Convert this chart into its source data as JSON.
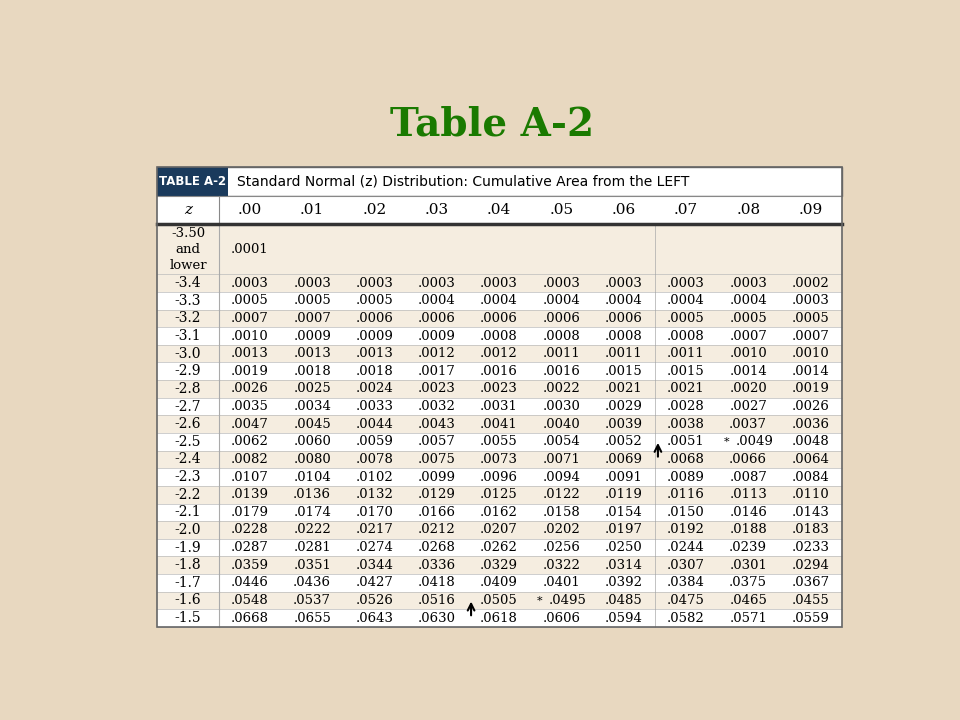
{
  "title": "Table A-2",
  "title_color": "#1a7a00",
  "bg_color": "#e8d8c0",
  "table_bg_light": "#f5ede0",
  "table_bg_dark": "#e8ddd0",
  "header_box_color": "#1a3a5c",
  "header_text": "Standard Normal (z) Distribution: Cumulative Area from the LEFT",
  "col_headers": [
    "z",
    ".00",
    ".01",
    ".02",
    ".03",
    ".04",
    ".05",
    ".06",
    ".07",
    ".08",
    ".09"
  ],
  "rows": [
    [
      "-3.50\nand\nlower",
      ".0001",
      "",
      "",
      "",
      "",
      "",
      "",
      "",
      "",
      ""
    ],
    [
      "-3.4",
      ".0003",
      ".0003",
      ".0003",
      ".0003",
      ".0003",
      ".0003",
      ".0003",
      ".0003",
      ".0003",
      ".0002"
    ],
    [
      "-3.3",
      ".0005",
      ".0005",
      ".0005",
      ".0004",
      ".0004",
      ".0004",
      ".0004",
      ".0004",
      ".0004",
      ".0003"
    ],
    [
      "-3.2",
      ".0007",
      ".0007",
      ".0006",
      ".0006",
      ".0006",
      ".0006",
      ".0006",
      ".0005",
      ".0005",
      ".0005"
    ],
    [
      "-3.1",
      ".0010",
      ".0009",
      ".0009",
      ".0009",
      ".0008",
      ".0008",
      ".0008",
      ".0008",
      ".0007",
      ".0007"
    ],
    [
      "-3.0",
      ".0013",
      ".0013",
      ".0013",
      ".0012",
      ".0012",
      ".0011",
      ".0011",
      ".0011",
      ".0010",
      ".0010"
    ],
    [
      "-2.9",
      ".0019",
      ".0018",
      ".0018",
      ".0017",
      ".0016",
      ".0016",
      ".0015",
      ".0015",
      ".0014",
      ".0014"
    ],
    [
      "-2.8",
      ".0026",
      ".0025",
      ".0024",
      ".0023",
      ".0023",
      ".0022",
      ".0021",
      ".0021",
      ".0020",
      ".0019"
    ],
    [
      "-2.7",
      ".0035",
      ".0034",
      ".0033",
      ".0032",
      ".0031",
      ".0030",
      ".0029",
      ".0028",
      ".0027",
      ".0026"
    ],
    [
      "-2.6",
      ".0047",
      ".0045",
      ".0044",
      ".0043",
      ".0041",
      ".0040",
      ".0039",
      ".0038",
      ".0037",
      ".0036"
    ],
    [
      "-2.5",
      ".0062",
      ".0060",
      ".0059",
      ".0057",
      ".0055",
      ".0054",
      ".0052",
      ".0051",
      "* .0049",
      ".0048"
    ],
    [
      "-2.4",
      ".0082",
      ".0080",
      ".0078",
      ".0075",
      ".0073",
      ".0071",
      ".0069",
      ".0068",
      ".0066",
      ".0064"
    ],
    [
      "-2.3",
      ".0107",
      ".0104",
      ".0102",
      ".0099",
      ".0096",
      ".0094",
      ".0091",
      ".0089",
      ".0087",
      ".0084"
    ],
    [
      "-2.2",
      ".0139",
      ".0136",
      ".0132",
      ".0129",
      ".0125",
      ".0122",
      ".0119",
      ".0116",
      ".0113",
      ".0110"
    ],
    [
      "-2.1",
      ".0179",
      ".0174",
      ".0170",
      ".0166",
      ".0162",
      ".0158",
      ".0154",
      ".0150",
      ".0146",
      ".0143"
    ],
    [
      "-2.0",
      ".0228",
      ".0222",
      ".0217",
      ".0212",
      ".0207",
      ".0202",
      ".0197",
      ".0192",
      ".0188",
      ".0183"
    ],
    [
      "-1.9",
      ".0287",
      ".0281",
      ".0274",
      ".0268",
      ".0262",
      ".0256",
      ".0250",
      ".0244",
      ".0239",
      ".0233"
    ],
    [
      "-1.8",
      ".0359",
      ".0351",
      ".0344",
      ".0336",
      ".0329",
      ".0322",
      ".0314",
      ".0307",
      ".0301",
      ".0294"
    ],
    [
      "-1.7",
      ".0446",
      ".0436",
      ".0427",
      ".0418",
      ".0409",
      ".0401",
      ".0392",
      ".0384",
      ".0375",
      ".0367"
    ],
    [
      "-1.6",
      ".0548",
      ".0537",
      ".0526",
      ".0516",
      ".0505",
      "* .0495",
      ".0485",
      ".0475",
      ".0465",
      ".0455"
    ],
    [
      "-1.5",
      ".0668",
      ".0655",
      ".0643",
      ".0630",
      ".0618",
      ".0606",
      ".0594",
      ".0582",
      ".0571",
      ".0559"
    ]
  ]
}
